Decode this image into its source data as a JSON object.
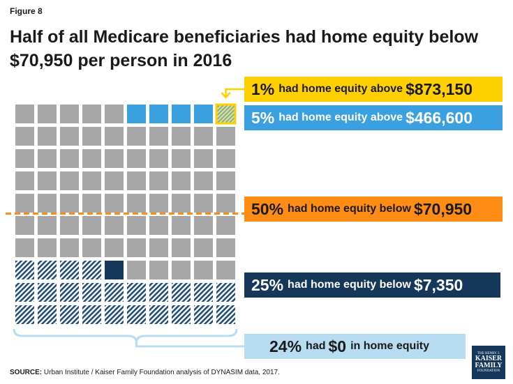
{
  "figure_label": "Figure 8",
  "title": "Half of all Medicare beneficiaries had home equity below $70,950 per person in 2016",
  "colors": {
    "grey": "#a6a6a6",
    "blue": "#3aa0e0",
    "navy": "#14375a",
    "yellow": "#ffd000",
    "orange": "#ff8c14",
    "light_blue": "#b8dcf2",
    "hatch_line": "#1f4e79",
    "green_hatch": "#8ab84a"
  },
  "chart_data": {
    "type": "waffle",
    "grid": {
      "rows": 10,
      "cols": 10
    },
    "groups": [
      {
        "percent": 1,
        "lead": "had home equity above",
        "amount": "$873,150",
        "style": "green-hatched-yellow-border",
        "color": "#ffd000"
      },
      {
        "percent": 5,
        "lead": "had home equity above",
        "amount": "$466,600",
        "style": "blue",
        "color": "#3aa0e0"
      },
      {
        "percent": 50,
        "lead": "had home equity below",
        "amount": "$70,950",
        "style": "orange-dashed-threshold",
        "color": "#ff8c14"
      },
      {
        "percent": 25,
        "lead": "had home equity below",
        "amount": "$7,350",
        "style": "navy",
        "color": "#14375a"
      },
      {
        "percent": 24,
        "lead": "had",
        "amount": "$0",
        "tail": "in home equity",
        "style": "navy-hatched",
        "color": "#b8dcf2"
      }
    ]
  },
  "callouts": {
    "c1": {
      "pct": "1%",
      "mid": "had home equity above",
      "amt": "$873,150"
    },
    "c2": {
      "pct": "5%",
      "mid": "had home equity above",
      "amt": "$466,600"
    },
    "c3": {
      "pct": "50%",
      "mid": "had home equity below",
      "amt": "$70,950"
    },
    "c4": {
      "pct": "25%",
      "mid": "had home equity below",
      "amt": "$7,350"
    },
    "c5": {
      "pct": "24%",
      "mid": "had",
      "amt": "$0",
      "tail": "in home equity"
    }
  },
  "source": {
    "label": "SOURCE:",
    "text": "Urban Institute / Kaiser Family Foundation analysis of DYNASIM data, 2017."
  },
  "logo": {
    "line1": "THE HENRY J.",
    "line2": "KAISER",
    "line3": "FAMILY",
    "line4": "FOUNDATION"
  }
}
